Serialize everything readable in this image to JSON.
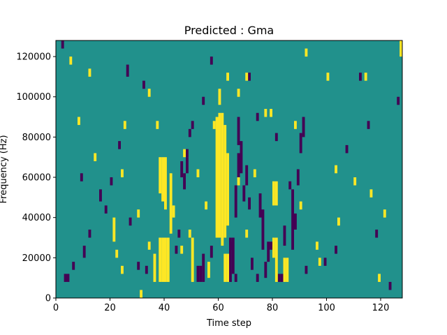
{
  "chart_data": {
    "type": "heatmap",
    "title": "Predicted : Gma",
    "xlabel": "Time step",
    "ylabel": "Frequency (Hz)",
    "xlim": [
      0,
      128
    ],
    "ylim": [
      0,
      128000
    ],
    "xticks": [
      0,
      20,
      40,
      60,
      80,
      100,
      120
    ],
    "xtick_labels": [
      "0",
      "20",
      "40",
      "60",
      "80",
      "100",
      "120"
    ],
    "yticks": [
      0,
      20000,
      40000,
      60000,
      80000,
      100000,
      120000
    ],
    "ytick_labels": [
      "0",
      "20000",
      "40000",
      "60000",
      "80000",
      "100000",
      "120000"
    ],
    "n_time_steps": 128,
    "n_freq_bins": 64,
    "freq_bin_hz": 2000,
    "background_value": 0,
    "value_colors": {
      "-1": "#440154",
      "0": "#21918c",
      "1": "#fde725"
    },
    "grid": false,
    "colorbar": false,
    "high_cells": [
      [
        127,
        120000,
        128000
      ],
      [
        63,
        108000,
        112000
      ],
      [
        60,
        96000,
        104000
      ],
      [
        100,
        108000,
        112000
      ],
      [
        114,
        108000,
        112000
      ],
      [
        31,
        0,
        4000
      ],
      [
        58,
        84000,
        88000
      ],
      [
        52,
        60000,
        64000
      ],
      [
        37,
        84000,
        88000
      ],
      [
        47,
        70000,
        74000
      ],
      [
        38,
        8000,
        30000
      ],
      [
        39,
        8000,
        30000
      ],
      [
        40,
        8000,
        30000
      ],
      [
        41,
        8000,
        30000
      ],
      [
        38,
        52000,
        70000
      ],
      [
        39,
        48000,
        70000
      ],
      [
        40,
        44000,
        70000
      ],
      [
        42,
        32000,
        62000
      ],
      [
        59,
        30000,
        90000
      ],
      [
        60,
        30000,
        92000
      ],
      [
        61,
        26000,
        92000
      ],
      [
        62,
        30000,
        86000
      ],
      [
        63,
        36000,
        72000
      ],
      [
        62,
        8000,
        22000
      ],
      [
        63,
        8000,
        22000
      ],
      [
        80,
        20000,
        30000
      ],
      [
        81,
        8000,
        30000
      ],
      [
        84,
        8000,
        20000
      ],
      [
        85,
        8000,
        20000
      ],
      [
        80,
        46000,
        58000
      ],
      [
        81,
        46000,
        58000
      ],
      [
        36,
        8000,
        22000
      ],
      [
        50,
        8000,
        30000
      ],
      [
        56,
        10000,
        18000
      ],
      [
        46,
        22000,
        26000
      ],
      [
        49,
        30000,
        34000
      ],
      [
        21,
        28000,
        40000
      ],
      [
        22,
        20000,
        24000
      ],
      [
        24,
        60000,
        64000
      ],
      [
        30,
        40000,
        44000
      ],
      [
        5,
        116000,
        120000
      ],
      [
        12,
        110000,
        114000
      ],
      [
        8,
        86000,
        90000
      ],
      [
        14,
        68000,
        72000
      ],
      [
        25,
        84000,
        88000
      ],
      [
        34,
        100000,
        104000
      ],
      [
        67,
        100000,
        104000
      ],
      [
        70,
        108000,
        112000
      ],
      [
        77,
        90000,
        94000
      ],
      [
        79,
        90000,
        94000
      ],
      [
        92,
        120000,
        124000
      ],
      [
        96,
        24000,
        28000
      ],
      [
        103,
        62000,
        66000
      ],
      [
        110,
        56000,
        60000
      ],
      [
        116,
        50000,
        54000
      ],
      [
        121,
        40000,
        44000
      ],
      [
        24,
        12000,
        16000
      ],
      [
        34,
        24000,
        28000
      ],
      [
        43,
        40000,
        46000
      ],
      [
        55,
        44000,
        48000
      ],
      [
        67,
        56000,
        60000
      ],
      [
        70,
        30000,
        34000
      ],
      [
        73,
        60000,
        64000
      ],
      [
        88,
        84000,
        88000
      ],
      [
        90,
        44000,
        48000
      ],
      [
        97,
        16000,
        20000
      ],
      [
        104,
        36000,
        40000
      ],
      [
        119,
        8000,
        12000
      ]
    ],
    "low_cells": [
      [
        2,
        124000,
        128000
      ],
      [
        49,
        80000,
        84000
      ],
      [
        48,
        70000,
        74000
      ],
      [
        50,
        84000,
        88000
      ],
      [
        32,
        104000,
        108000
      ],
      [
        54,
        96000,
        100000
      ],
      [
        46,
        60000,
        68000
      ],
      [
        47,
        54000,
        62000
      ],
      [
        48,
        62000,
        70000
      ],
      [
        64,
        8000,
        28000
      ],
      [
        65,
        12000,
        30000
      ],
      [
        66,
        40000,
        56000
      ],
      [
        67,
        60000,
        72000
      ],
      [
        67,
        76000,
        90000
      ],
      [
        68,
        62000,
        78000
      ],
      [
        69,
        48000,
        56000
      ],
      [
        70,
        56000,
        66000
      ],
      [
        75,
        40000,
        52000
      ],
      [
        76,
        24000,
        44000
      ],
      [
        77,
        10000,
        18000
      ],
      [
        78,
        18000,
        28000
      ],
      [
        84,
        26000,
        36000
      ],
      [
        87,
        24000,
        54000
      ],
      [
        88,
        34000,
        42000
      ],
      [
        89,
        56000,
        64000
      ],
      [
        90,
        72000,
        82000
      ],
      [
        91,
        80000,
        90000
      ],
      [
        52,
        8000,
        16000
      ],
      [
        53,
        8000,
        16000
      ],
      [
        54,
        8000,
        22000
      ],
      [
        57,
        20000,
        26000
      ],
      [
        45,
        30000,
        34000
      ],
      [
        44,
        22000,
        26000
      ],
      [
        66,
        8000,
        12000
      ],
      [
        72,
        14000,
        20000
      ],
      [
        82,
        8000,
        12000
      ],
      [
        83,
        8000,
        12000
      ],
      [
        3,
        8000,
        12000
      ],
      [
        4,
        8000,
        12000
      ],
      [
        6,
        14000,
        18000
      ],
      [
        10,
        20000,
        26000
      ],
      [
        12,
        30000,
        34000
      ],
      [
        16,
        48000,
        54000
      ],
      [
        20,
        56000,
        60000
      ],
      [
        23,
        74000,
        78000
      ],
      [
        27,
        36000,
        40000
      ],
      [
        30,
        14000,
        18000
      ],
      [
        33,
        12000,
        16000
      ],
      [
        26,
        110000,
        116000
      ],
      [
        57,
        116000,
        120000
      ],
      [
        64,
        24000,
        30000
      ],
      [
        71,
        44000,
        50000
      ],
      [
        74,
        8000,
        12000
      ],
      [
        79,
        24000,
        28000
      ],
      [
        86,
        54000,
        58000
      ],
      [
        92,
        12000,
        16000
      ],
      [
        99,
        16000,
        20000
      ],
      [
        103,
        22000,
        26000
      ],
      [
        107,
        72000,
        76000
      ],
      [
        112,
        108000,
        112000
      ],
      [
        115,
        84000,
        88000
      ],
      [
        118,
        30000,
        34000
      ],
      [
        123,
        4000,
        8000
      ],
      [
        126,
        96000,
        100000
      ],
      [
        71,
        108000,
        112000
      ],
      [
        74,
        88000,
        92000
      ],
      [
        81,
        78000,
        82000
      ],
      [
        9,
        58000,
        62000
      ],
      [
        18,
        42000,
        46000
      ]
    ]
  }
}
